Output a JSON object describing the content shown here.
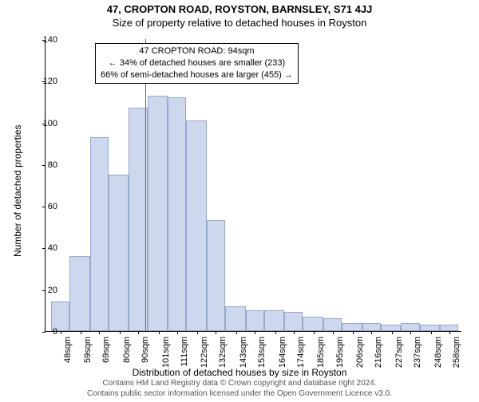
{
  "title_main": "47, CROPTON ROAD, ROYSTON, BARNSLEY, S71 4JJ",
  "title_sub": "Size of property relative to detached houses in Royston",
  "y_axis_label": "Number of detached properties",
  "x_axis_label": "Distribution of detached houses by size in Royston",
  "footer_line1": "Contains HM Land Registry data © Crown copyright and database right 2024.",
  "footer_line2": "Contains public sector information licensed under the Open Government Licence v3.0.",
  "annotation": {
    "line1": "47 CROPTON ROAD: 94sqm",
    "line2": "← 34% of detached houses are smaller (233)",
    "line3": "66% of semi-detached houses are larger (455) →"
  },
  "chart": {
    "type": "histogram",
    "background_color": "#ffffff",
    "bar_fill": "#cdd8ef",
    "bar_border": "#9aa8c8",
    "reference_line_color": "#d93333",
    "reference_value": 94,
    "x_min": 40,
    "x_max": 265,
    "ylim": [
      0,
      140
    ],
    "yticks": [
      0,
      20,
      40,
      60,
      80,
      100,
      120,
      140
    ],
    "xtick_values": [
      48,
      59,
      69,
      80,
      90,
      101,
      111,
      122,
      132,
      143,
      153,
      164,
      174,
      185,
      195,
      206,
      216,
      227,
      237,
      248,
      258
    ],
    "xtick_labels": [
      "48sqm",
      "59sqm",
      "69sqm",
      "80sqm",
      "90sqm",
      "101sqm",
      "111sqm",
      "122sqm",
      "132sqm",
      "143sqm",
      "153sqm",
      "164sqm",
      "174sqm",
      "185sqm",
      "195sqm",
      "206sqm",
      "216sqm",
      "227sqm",
      "237sqm",
      "248sqm",
      "258sqm"
    ],
    "x_label_fontsize": 11,
    "y_label_fontsize": 11,
    "title_fontsize": 13,
    "axis_label_fontsize": 12,
    "bars": [
      {
        "x0": 43,
        "x1": 53,
        "y": 14
      },
      {
        "x0": 53,
        "x1": 64,
        "y": 36
      },
      {
        "x0": 64,
        "x1": 74,
        "y": 93
      },
      {
        "x0": 74,
        "x1": 85,
        "y": 75
      },
      {
        "x0": 85,
        "x1": 95,
        "y": 107
      },
      {
        "x0": 95,
        "x1": 106,
        "y": 113
      },
      {
        "x0": 106,
        "x1": 116,
        "y": 112
      },
      {
        "x0": 116,
        "x1": 127,
        "y": 101
      },
      {
        "x0": 127,
        "x1": 137,
        "y": 53
      },
      {
        "x0": 137,
        "x1": 148,
        "y": 12
      },
      {
        "x0": 148,
        "x1": 158,
        "y": 10
      },
      {
        "x0": 158,
        "x1": 169,
        "y": 10
      },
      {
        "x0": 169,
        "x1": 179,
        "y": 9
      },
      {
        "x0": 179,
        "x1": 190,
        "y": 7
      },
      {
        "x0": 190,
        "x1": 200,
        "y": 6
      },
      {
        "x0": 200,
        "x1": 211,
        "y": 4
      },
      {
        "x0": 211,
        "x1": 221,
        "y": 4
      },
      {
        "x0": 221,
        "x1": 232,
        "y": 3
      },
      {
        "x0": 232,
        "x1": 242,
        "y": 4
      },
      {
        "x0": 242,
        "x1": 253,
        "y": 3
      },
      {
        "x0": 253,
        "x1": 263,
        "y": 3
      }
    ]
  }
}
